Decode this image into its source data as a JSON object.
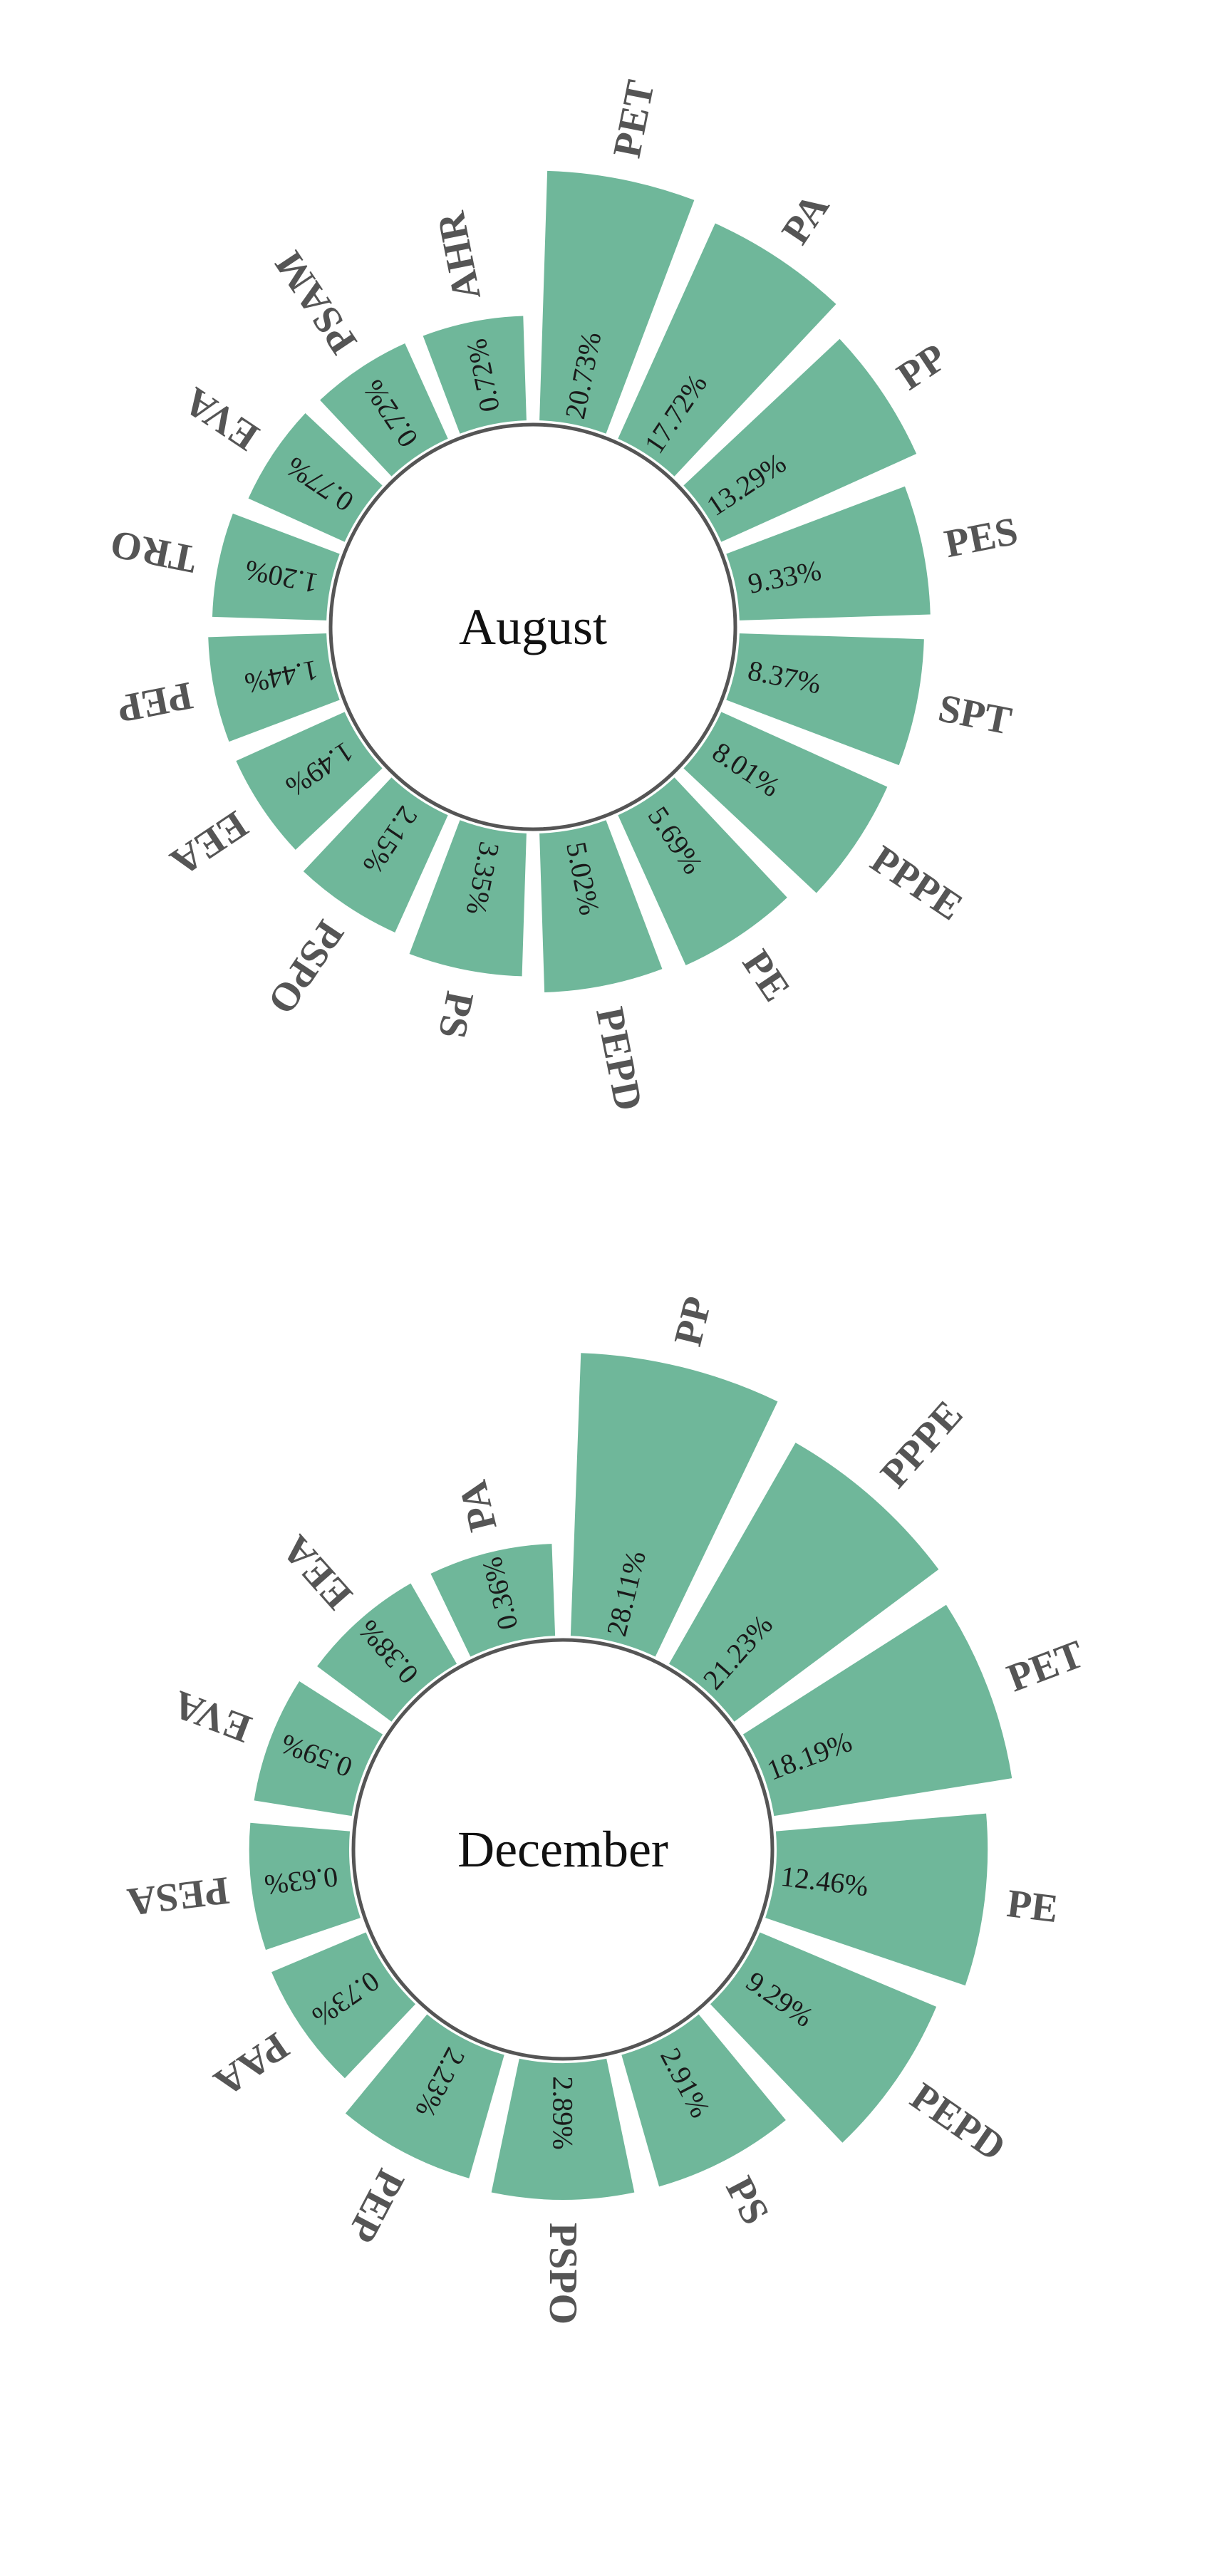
{
  "colors": {
    "bar": "#6fb79a",
    "background": "#ffffff"
  },
  "chart_data": [
    {
      "type": "bar",
      "subtype": "radial",
      "title": "August",
      "categories": [
        "PET",
        "PA",
        "PP",
        "PES",
        "SPT",
        "PPPE",
        "PE",
        "PEPD",
        "PS",
        "PSPO",
        "EEA",
        "PEP",
        "TRO",
        "EVA",
        "PSAM",
        "AHR"
      ],
      "values": [
        20.73,
        17.72,
        13.29,
        9.33,
        8.37,
        8.01,
        5.69,
        5.02,
        3.35,
        2.15,
        1.49,
        1.44,
        1.2,
        0.77,
        0.72,
        0.72
      ],
      "labels": [
        "20.73%",
        "17.72%",
        "13.29%",
        "9.33%",
        "8.37%",
        "8.01%",
        "5.69%",
        "5.02%",
        "3.35%",
        "2.15%",
        "1.49%",
        "1.44%",
        "1.20%",
        "0.77%",
        "0.72%",
        "0.72%"
      ],
      "unit": "%"
    },
    {
      "type": "bar",
      "subtype": "radial",
      "title": "December",
      "categories": [
        "PP",
        "PPPE",
        "PET",
        "PE",
        "PEPD",
        "PS",
        "PSPO",
        "PEP",
        "PAA",
        "PESA",
        "EVA",
        "EEA",
        "PA"
      ],
      "values": [
        28.11,
        21.23,
        18.19,
        12.46,
        9.29,
        2.91,
        2.89,
        2.23,
        0.73,
        0.63,
        0.59,
        0.38,
        0.36
      ],
      "labels": [
        "28.11%",
        "21.23%",
        "18.19%",
        "12.46%",
        "9.29%",
        "2.91%",
        "2.89%",
        "2.23%",
        "0.73%",
        "0.63%",
        "0.59%",
        "0.38%",
        "0.36%"
      ],
      "unit": "%"
    }
  ]
}
